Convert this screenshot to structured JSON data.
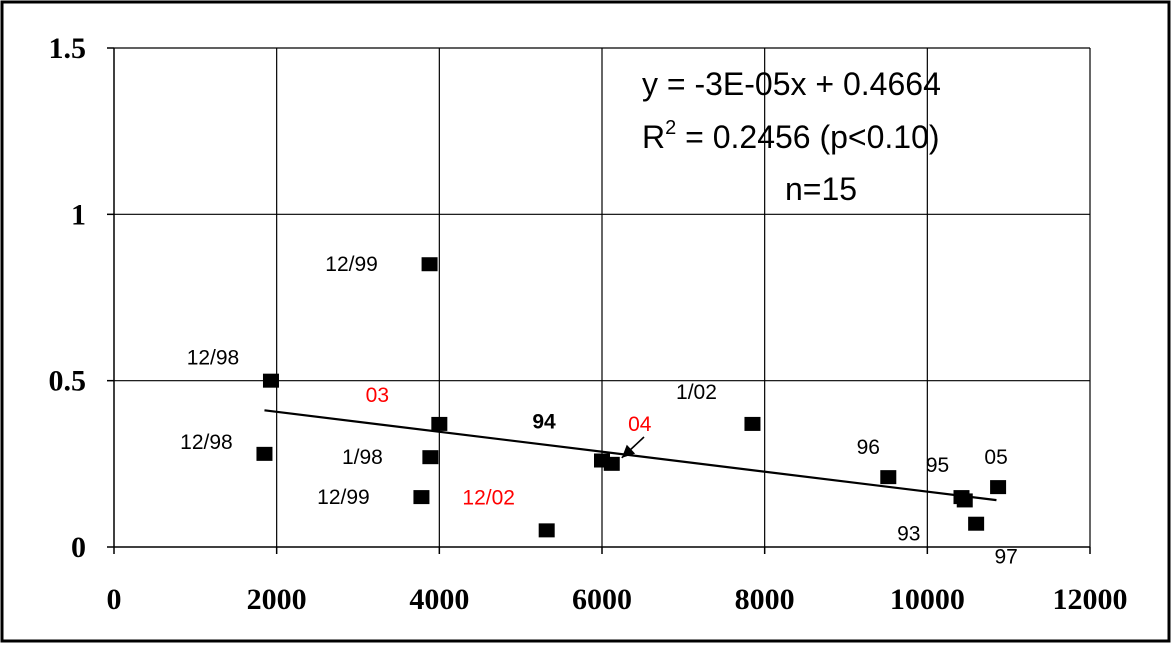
{
  "chart_data": {
    "type": "scatter",
    "title": "",
    "xlabel": "",
    "ylabel": "",
    "xlim": [
      0,
      12000
    ],
    "ylim": [
      0,
      1.5
    ],
    "grid": true,
    "x_ticks": [
      0,
      2000,
      4000,
      6000,
      8000,
      10000,
      12000
    ],
    "x_tick_labels": [
      "0",
      "2000",
      "4000",
      "6000",
      "8000",
      "10000",
      "12000"
    ],
    "y_ticks": [
      0,
      0.5,
      1,
      1.5
    ],
    "y_tick_labels": [
      "0",
      "0.5",
      "1",
      "1.5"
    ],
    "series": [
      {
        "marker": "square",
        "color": "#000000",
        "points": [
          {
            "x": 1850,
            "y": 0.28,
            "label": "12/98",
            "label_color": "#000000"
          },
          {
            "x": 1930,
            "y": 0.5,
            "label": "12/98",
            "label_color": "#000000"
          },
          {
            "x": 3780,
            "y": 0.15,
            "label": "12/99",
            "label_color": "#000000"
          },
          {
            "x": 3880,
            "y": 0.85,
            "label": "12/99",
            "label_color": "#000000"
          },
          {
            "x": 3890,
            "y": 0.27,
            "label": "1/98",
            "label_color": "#000000"
          },
          {
            "x": 4000,
            "y": 0.37,
            "label": "03",
            "label_color": "#ff0000"
          },
          {
            "x": 5320,
            "y": 0.05,
            "label": "12/02",
            "label_color": "#ff0000"
          },
          {
            "x": 6000,
            "y": 0.26,
            "label": "94",
            "label_color": "#000000",
            "label_bold": true
          },
          {
            "x": 6120,
            "y": 0.25,
            "label": "04",
            "label_color": "#ff0000",
            "arrow": true
          },
          {
            "x": 7850,
            "y": 0.37,
            "label": "1/02",
            "label_color": "#000000"
          },
          {
            "x": 9520,
            "y": 0.21,
            "label": "96",
            "label_color": "#000000"
          },
          {
            "x": 10420,
            "y": 0.15,
            "label": "95",
            "label_color": "#000000"
          },
          {
            "x": 10460,
            "y": 0.14,
            "label": "93",
            "label_color": "#000000"
          },
          {
            "x": 10600,
            "y": 0.07,
            "label": "97",
            "label_color": "#000000"
          },
          {
            "x": 10870,
            "y": 0.18,
            "label": "05",
            "label_color": "#000000"
          }
        ]
      }
    ],
    "trendline": {
      "slope": -3e-05,
      "intercept": 0.4664,
      "x_start": 1850,
      "x_end": 10850
    },
    "annotations": {
      "equation": "y = -3E-05x + 0.4664",
      "r2_prefix": "R",
      "r2_sup": "2",
      "r2_rest": " = 0.2456 (p<0.10)",
      "n_text": "n=15"
    }
  }
}
